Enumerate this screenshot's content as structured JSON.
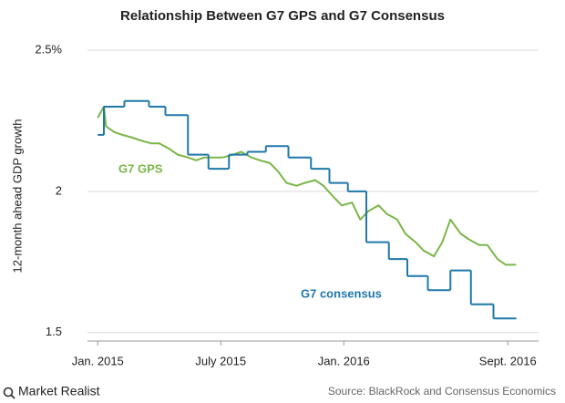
{
  "chart_data": {
    "type": "line",
    "title": "Relationship Between G7 GPS and G7 Consensus",
    "y_label": "12-month ahead GDP growth",
    "source": "Source: BlackRock and Consensus Economics",
    "logo": "Market Realist",
    "xlim": [
      -0.5,
      21.5
    ],
    "xticks": [
      {
        "value": 0,
        "label": "Jan. 2015"
      },
      {
        "value": 6,
        "label": "July 2015"
      },
      {
        "value": 12,
        "label": "Jan. 2016"
      },
      {
        "value": 20,
        "label": "Sept. 2016"
      }
    ],
    "ylim": [
      1.47,
      2.5
    ],
    "yticks": [
      {
        "value": 1.5,
        "label": "1.5"
      },
      2,
      {
        "value": 2.5,
        "label": "2.5%"
      }
    ],
    "grid": true,
    "series": [
      {
        "name": "G7 GPS",
        "color": "#7ab648",
        "step": false,
        "x": [
          0,
          0.3,
          0.4,
          0.8,
          1.2,
          1.7,
          2.1,
          2.6,
          3.0,
          3.5,
          3.9,
          4.4,
          4.8,
          5.2,
          5.7,
          6.1,
          6.6,
          7.0,
          7.5,
          7.9,
          8.4,
          8.8,
          9.2,
          9.7,
          10.1,
          10.6,
          11.0,
          11.5,
          11.9,
          12.4,
          12.8,
          13.2,
          13.7,
          14.1,
          14.6,
          15.0,
          15.5,
          15.9,
          16.4,
          16.8,
          17.2,
          17.7,
          18.1,
          18.6,
          19.0,
          19.5,
          19.9,
          20.4
        ],
        "values": [
          2.26,
          2.3,
          2.23,
          2.21,
          2.2,
          2.19,
          2.18,
          2.17,
          2.17,
          2.15,
          2.13,
          2.12,
          2.11,
          2.12,
          2.12,
          2.12,
          2.13,
          2.14,
          2.12,
          2.11,
          2.1,
          2.07,
          2.03,
          2.02,
          2.03,
          2.04,
          2.02,
          1.98,
          1.95,
          1.96,
          1.9,
          1.93,
          1.95,
          1.92,
          1.9,
          1.85,
          1.82,
          1.79,
          1.77,
          1.82,
          1.9,
          1.85,
          1.83,
          1.81,
          1.81,
          1.76,
          1.74,
          1.74
        ]
      },
      {
        "name": "G7 consensus",
        "color": "#1f78a8",
        "step": true,
        "x": [
          0,
          0.3,
          1.3,
          2.5,
          3.3,
          4.4,
          5.4,
          6.4,
          7.3,
          8.2,
          9.3,
          10.4,
          11.3,
          12.2,
          13.1,
          14.2,
          15.1,
          16.1,
          17.2,
          18.2,
          19.3,
          20.4
        ],
        "values": [
          2.2,
          2.3,
          2.32,
          2.3,
          2.27,
          2.13,
          2.08,
          2.13,
          2.14,
          2.16,
          2.12,
          2.08,
          2.03,
          2.0,
          1.82,
          1.76,
          1.7,
          1.65,
          1.72,
          1.6,
          1.55,
          1.55
        ]
      }
    ]
  }
}
